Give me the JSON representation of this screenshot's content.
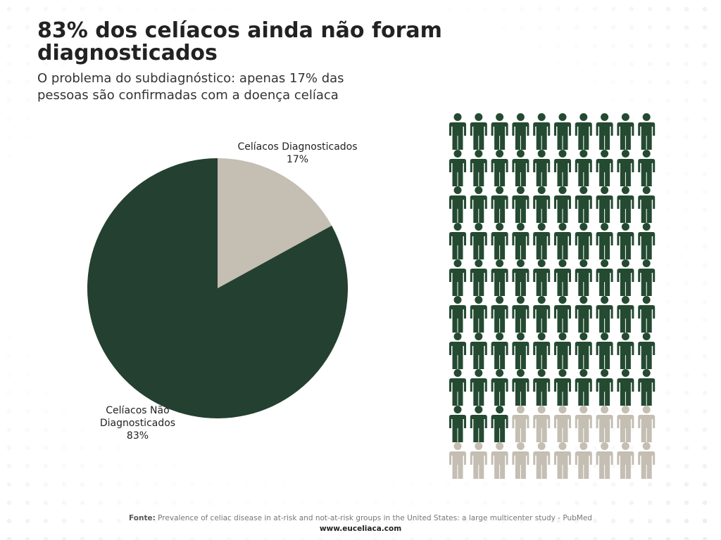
{
  "chart_data": [
    {
      "type": "pie",
      "title": "83% dos celíacos ainda não foram diagnosticados",
      "subtitle": "O problema do subdiagnóstico: apenas 17% das pessoas são confirmadas com a doença celíaca",
      "categories": [
        "Celíacos Diagnosticados",
        "Celíacos Não Diagnosticados"
      ],
      "values": [
        17,
        83
      ],
      "value_labels": [
        "17%",
        "83%"
      ],
      "colors": [
        "#c4beb3",
        "#244030"
      ]
    },
    {
      "type": "pictogram",
      "categories": [
        "Celíacos Não Diagnosticados",
        "Celíacos Diagnosticados"
      ],
      "values": [
        83,
        17
      ],
      "colors": [
        "#244a31",
        "#c4beb3"
      ]
    }
  ],
  "footer": {
    "source_label": "Fonte:",
    "source": "Prevalence of celiac disease in at-risk and not-at-risk groups in the United States: a large multicenter study - PubMed",
    "website": "www.euceliaca.com"
  }
}
